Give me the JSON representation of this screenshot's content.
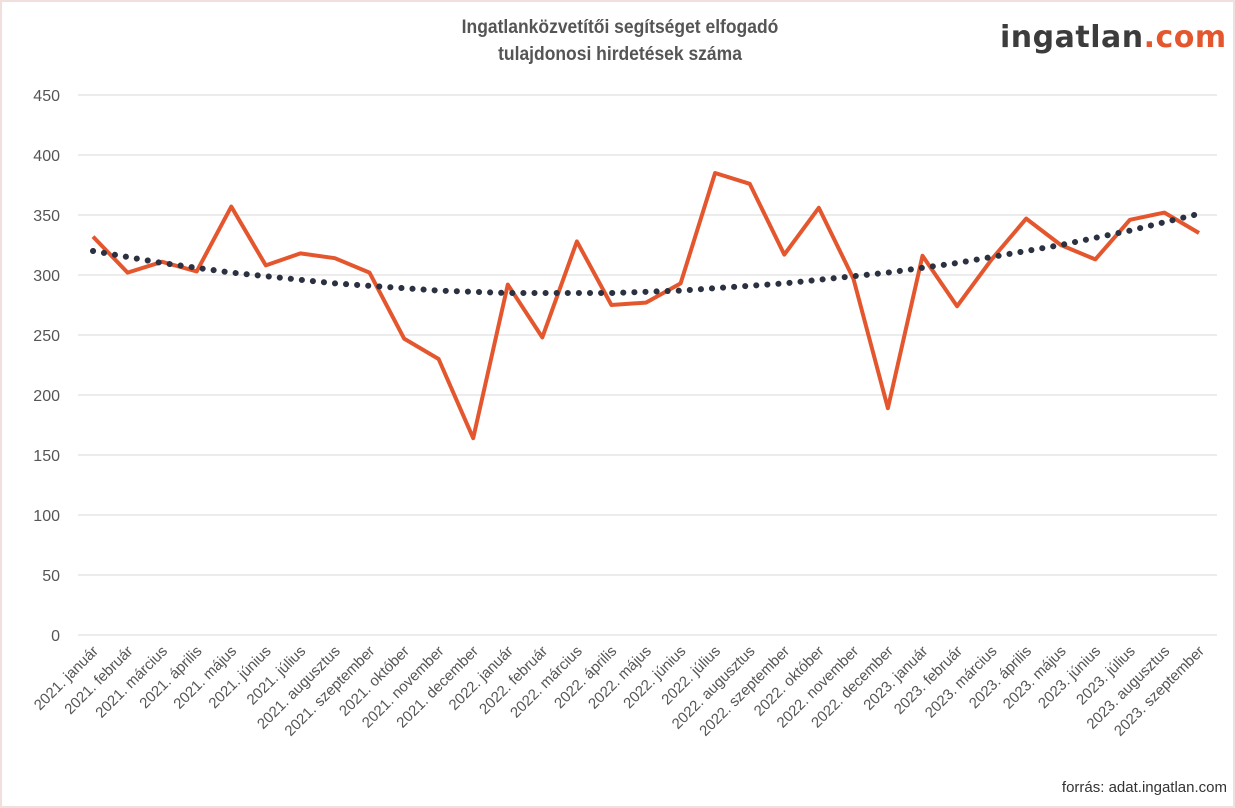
{
  "logo": {
    "name": "ingatlan",
    "domain": ".com"
  },
  "source": "forrás: adat.ingatlan.com",
  "chart_data": {
    "type": "line",
    "title": [
      "Ingatlanközvetítői segítséget elfogadó",
      "tulajdonosi hirdetések száma"
    ],
    "xlabel": "",
    "ylabel": "",
    "ylim": [
      0,
      450
    ],
    "yticks": [
      0,
      50,
      100,
      150,
      200,
      250,
      300,
      350,
      400,
      450
    ],
    "grid": true,
    "categories": [
      "2021. január",
      "2021. február",
      "2021. március",
      "2021. április",
      "2021. május",
      "2021. június",
      "2021. július",
      "2021. augusztus",
      "2021. szeptember",
      "2021. október",
      "2021. november",
      "2021. december",
      "2022. január",
      "2022. február",
      "2022. március",
      "2022. április",
      "2022. május",
      "2022. június",
      "2022. július",
      "2022. augusztus",
      "2022. szeptember",
      "2022. október",
      "2022. november",
      "2022. december",
      "2023. január",
      "2023. február",
      "2023. március",
      "2023. április",
      "2023. május",
      "2023. június",
      "2023. július",
      "2023. augusztus",
      "2023. szeptember"
    ],
    "series": [
      {
        "values": [
          332,
          302,
          311,
          303,
          357,
          308,
          318,
          314,
          302,
          247,
          230,
          164,
          292,
          248,
          328,
          275,
          277,
          293,
          385,
          376,
          317,
          356,
          297,
          189,
          316,
          274,
          313,
          347,
          325,
          313,
          346,
          352,
          335
        ],
        "color": "#e4572e",
        "style": "solid"
      },
      {
        "values": [
          320,
          315,
          310,
          306,
          302,
          299,
          296,
          293,
          291,
          289,
          287,
          286,
          285,
          285,
          285,
          285,
          286,
          287,
          289,
          291,
          293,
          296,
          299,
          302,
          306,
          310,
          315,
          320,
          325,
          331,
          337,
          344,
          351
        ],
        "color": "#2b3140",
        "style": "dotted",
        "kind": "polynomial trendline"
      }
    ]
  }
}
